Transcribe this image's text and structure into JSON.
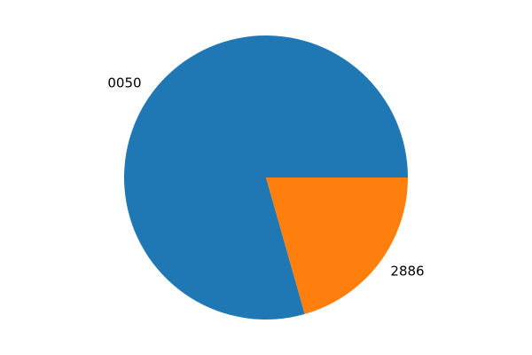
{
  "chart_data": {
    "type": "pie",
    "labels": [
      "0050",
      "2886"
    ],
    "values": [
      79.4,
      20.6
    ],
    "colors": [
      "#1f77b4",
      "#ff7f0e"
    ],
    "start_angle_deg": 0,
    "direction": "counterclockwise"
  }
}
